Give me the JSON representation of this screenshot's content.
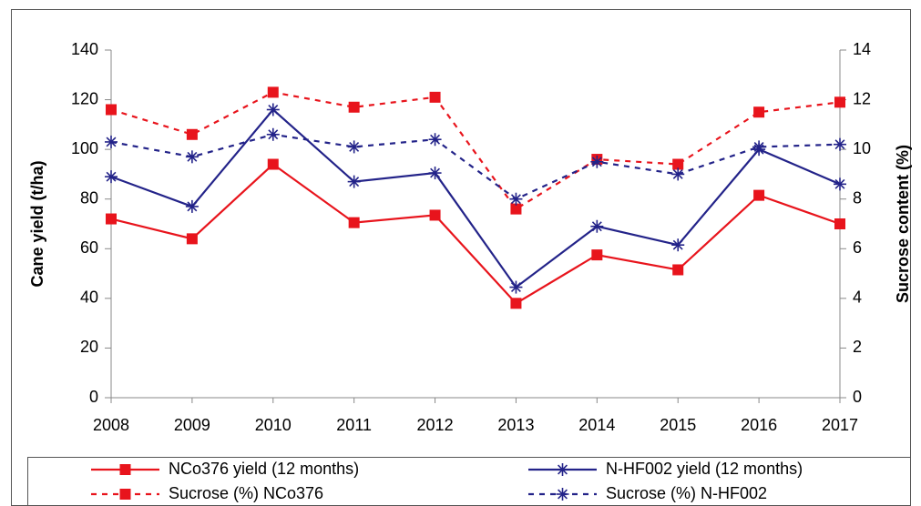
{
  "chart_data": {
    "type": "line",
    "categories": [
      "2008",
      "2009",
      "2010",
      "2011",
      "2012",
      "2013",
      "2014",
      "2015",
      "2016",
      "2017"
    ],
    "y_label": "Cane yield (t/ha)",
    "y2_label": "Sucrose content (%)",
    "ylim": [
      0,
      140
    ],
    "yticks": [
      0,
      20,
      40,
      60,
      80,
      100,
      120,
      140
    ],
    "y2lim": [
      0,
      14
    ],
    "y2ticks": [
      0,
      2,
      4,
      6,
      8,
      10,
      12,
      14
    ],
    "legend": "bottom",
    "series": [
      {
        "name": "NCo376 yield (12 months)",
        "color": "#e8141c",
        "style": "solid",
        "marker": "square",
        "values": [
          72,
          64,
          94,
          70.5,
          73.5,
          38,
          57.5,
          51.5,
          81.5,
          70
        ]
      },
      {
        "name": "N-HF002 yield (12 months)",
        "color": "#232389",
        "style": "solid",
        "marker": "asterisk",
        "values": [
          89,
          77,
          116,
          87,
          90.5,
          44.5,
          69,
          61.5,
          100,
          86
        ]
      },
      {
        "name": "Sucrose (%) NCo376",
        "color": "#e8141c",
        "style": "dashed",
        "marker": "square",
        "axis": "y2",
        "values": [
          11.6,
          10.6,
          12.3,
          11.7,
          12.1,
          7.6,
          9.6,
          9.4,
          11.5,
          11.9
        ]
      },
      {
        "name": "Sucrose (%) N-HF002",
        "color": "#232389",
        "style": "dashed",
        "marker": "asterisk",
        "axis": "y2",
        "values": [
          10.3,
          9.7,
          10.6,
          10.1,
          10.4,
          8.0,
          9.5,
          9.0,
          10.1,
          10.2
        ]
      }
    ]
  }
}
